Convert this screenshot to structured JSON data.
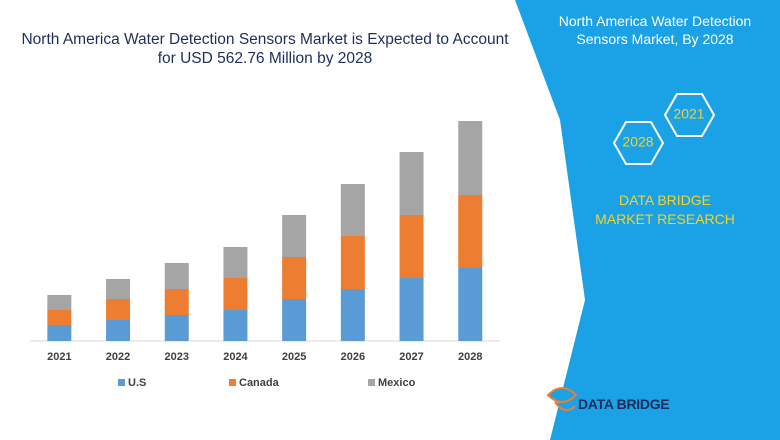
{
  "chart_data": {
    "type": "stacked-bar",
    "title": "North America Water Detection Sensors Market is Expected to Account for USD 562.76  Million by 2028",
    "categories": [
      "2021",
      "2022",
      "2023",
      "2024",
      "2025",
      "2026",
      "2027",
      "2028"
    ],
    "series": [
      {
        "name": "U.S",
        "color": "#5b9bd5",
        "values": [
          16,
          21,
          26,
          31,
          42,
          52,
          63,
          73
        ]
      },
      {
        "name": "Canada",
        "color": "#ed7d31",
        "values": [
          15,
          21,
          26,
          32,
          42,
          53,
          63,
          73
        ]
      },
      {
        "name": "Mexico",
        "color": "#a5a5a5",
        "values": [
          15,
          20,
          26,
          31,
          42,
          52,
          63,
          74
        ]
      }
    ]
  },
  "panel": {
    "heading": "North America Water Detection Sensors Market, By 2028",
    "hex_top": "2021",
    "hex_bottom": "2028",
    "brand": "DATA BRIDGE MARKET RESEARCH",
    "logo": "DATA BRIDGE"
  }
}
